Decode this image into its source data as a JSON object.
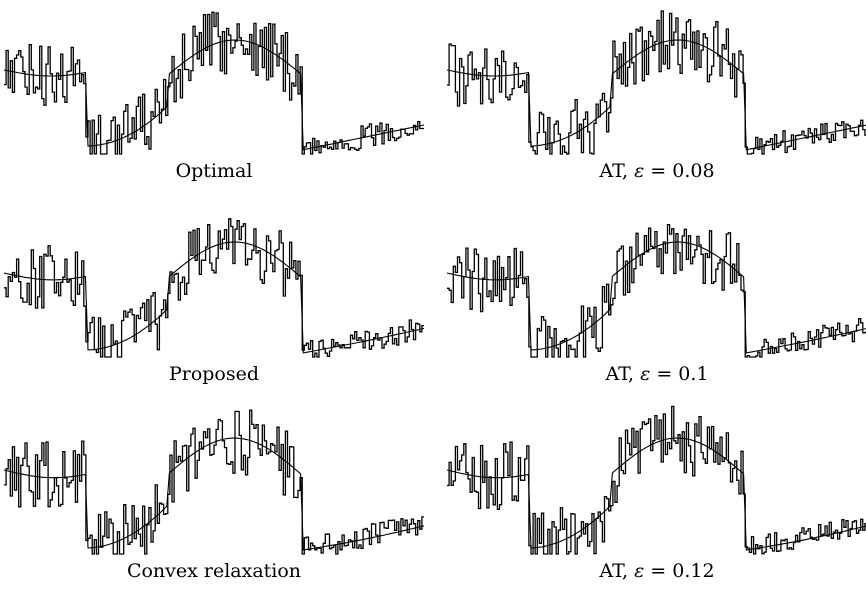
{
  "chart_data": [
    {
      "type": "line",
      "caption": "Optimal",
      "series": [
        {
          "kind": "noisy-signal"
        },
        {
          "kind": "piecewise-smooth-fit"
        }
      ]
    },
    {
      "type": "line",
      "caption": "Proposed",
      "series": [
        {
          "kind": "noisy-signal"
        },
        {
          "kind": "piecewise-smooth-fit"
        }
      ]
    },
    {
      "type": "line",
      "caption": "Convex relaxation",
      "series": [
        {
          "kind": "noisy-signal"
        },
        {
          "kind": "piecewise-smooth-fit"
        }
      ]
    },
    {
      "type": "line",
      "caption_prefix": "AT, ",
      "caption_symbol": "ε",
      "caption_suffix": " = 0.08",
      "series": [
        {
          "kind": "noisy-signal"
        },
        {
          "kind": "piecewise-smooth-fit"
        }
      ]
    },
    {
      "type": "line",
      "caption_prefix": "AT, ",
      "caption_symbol": "ε",
      "caption_suffix": " = 0.1",
      "series": [
        {
          "kind": "noisy-signal"
        },
        {
          "kind": "piecewise-smooth-fit"
        }
      ]
    },
    {
      "type": "line",
      "caption_prefix": "AT, ",
      "caption_symbol": "ε",
      "caption_suffix": " = 0.12",
      "series": [
        {
          "kind": "noisy-signal"
        },
        {
          "kind": "piecewise-smooth-fit"
        }
      ]
    }
  ]
}
